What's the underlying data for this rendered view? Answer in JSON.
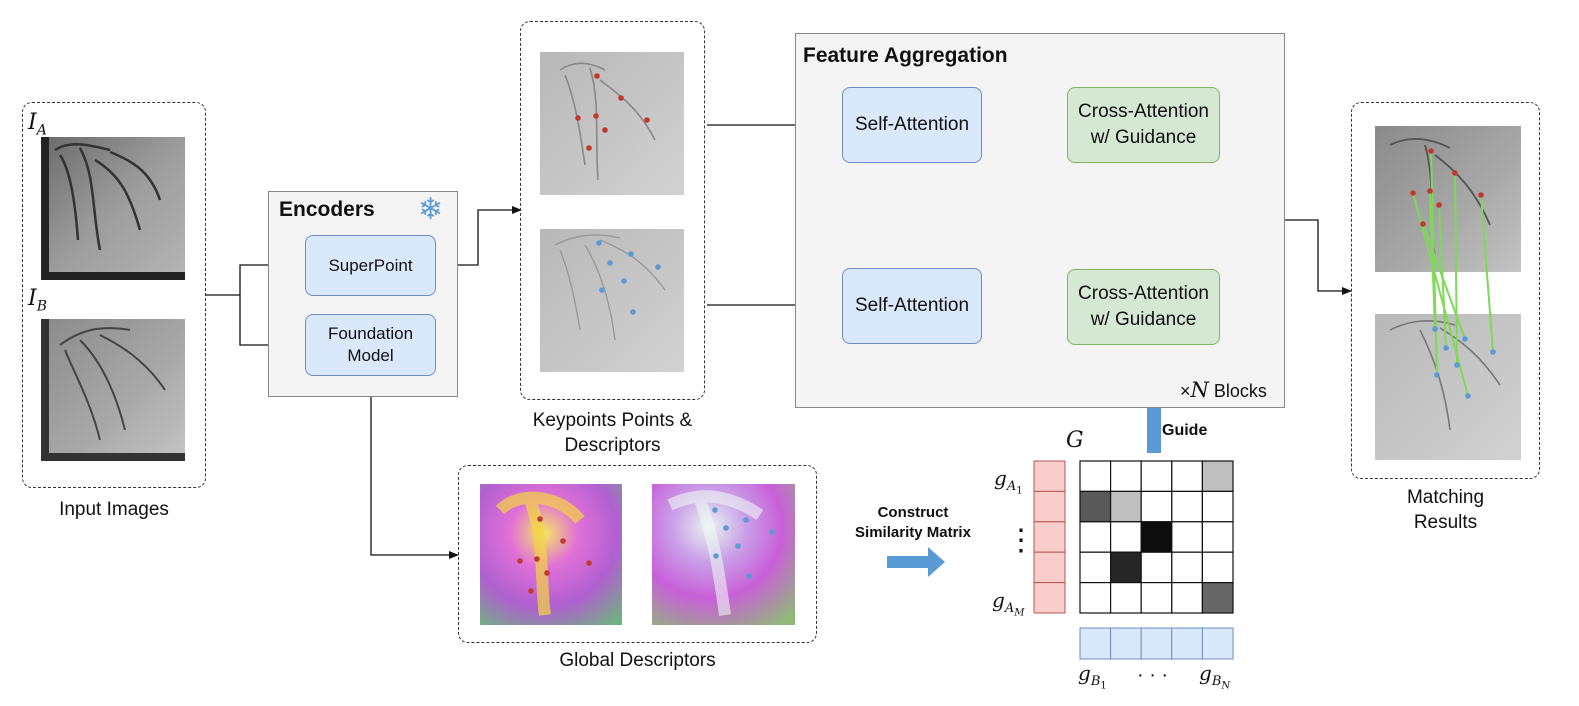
{
  "input_images": {
    "caption": "Input Images",
    "label_a": "I",
    "label_a_sub": "A",
    "label_b": "I",
    "label_b_sub": "B"
  },
  "encoders": {
    "title": "Encoders",
    "icon": "snowflake-icon",
    "superpoint": "SuperPoint",
    "foundation_line1": "Foundation",
    "foundation_line2": "Model"
  },
  "keypoints": {
    "caption_line1": "Keypoints Points &",
    "caption_line2": "Descriptors"
  },
  "feature_aggregation": {
    "title": "Feature Aggregation",
    "self_attention_top": "Self-Attention",
    "self_attention_bottom": "Self-Attention",
    "cross_top_line1": "Cross-Attention",
    "cross_top_line2": "w/ Guidance",
    "cross_bottom_line1": "Cross-Attention",
    "cross_bottom_line2": "w/ Guidance",
    "blocks_times": "×",
    "blocks_n": "N",
    "blocks_label": "Blocks"
  },
  "guide_label": "Guide",
  "global_descriptors": {
    "caption": "Global Descriptors"
  },
  "similarity": {
    "construct_line1": "Construct",
    "construct_line2": "Similarity Matrix",
    "matrix_label": "G",
    "row_first": "g",
    "row_first_sub": "A",
    "row_first_subsub": "1",
    "row_last": "g",
    "row_last_sub": "A",
    "row_last_subsub": "M",
    "vdots": "⋮",
    "col_first": "g",
    "col_first_sub": "B",
    "col_first_subsub": "1",
    "col_dots": "· · ·",
    "col_last": "g",
    "col_last_sub": "B",
    "col_last_subsub": "N",
    "cells": [
      [
        0,
        0,
        0,
        0,
        0.25
      ],
      [
        0.65,
        0.25,
        0,
        0,
        0
      ],
      [
        0,
        0,
        0.95,
        0,
        0
      ],
      [
        0,
        0.85,
        0,
        0,
        0
      ],
      [
        0,
        0,
        0,
        0,
        0.6
      ]
    ]
  },
  "matching": {
    "caption_line1": "Matching",
    "caption_line2": "Results"
  },
  "colors": {
    "keypoint_red": "#c0392b",
    "keypoint_blue": "#5b9bd5",
    "match_green": "#7ed957",
    "arrow_blue": "#5b9bd5"
  }
}
